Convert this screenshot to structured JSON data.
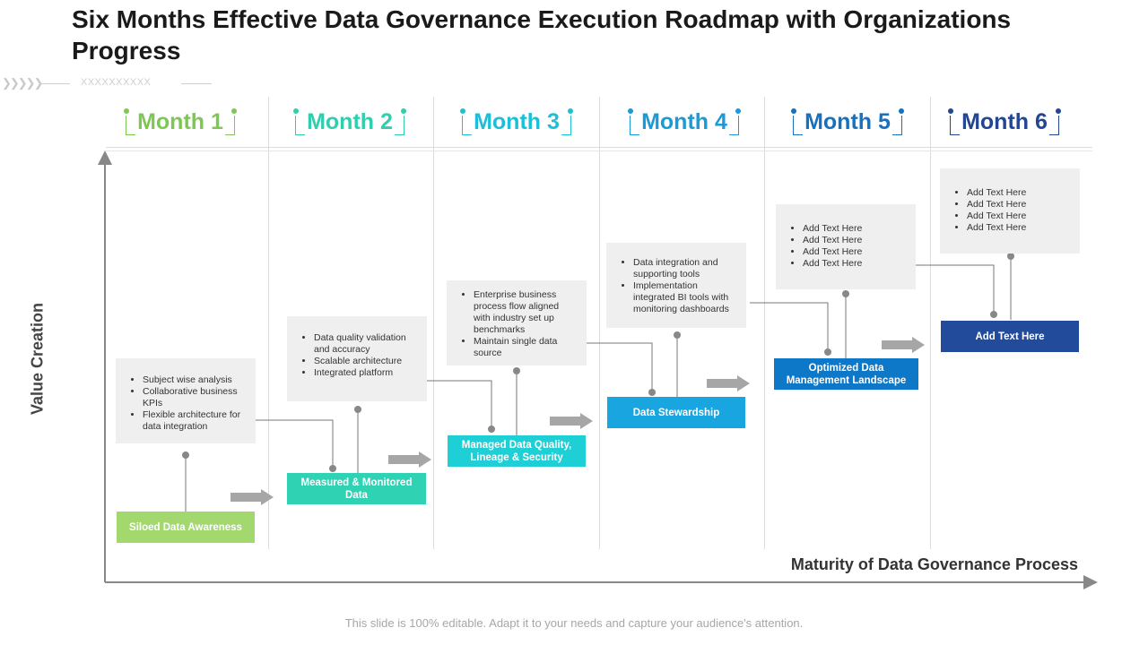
{
  "title": "Six Months Effective Data Governance Execution Roadmap with Organizations Progress",
  "subtitle_placeholder": "XXXXXXXXXX",
  "axes": {
    "y_label": "Value Creation",
    "x_label": "Maturity  of Data Governance Process"
  },
  "months": [
    {
      "label": "Month 1",
      "color": "#7dc855"
    },
    {
      "label": "Month 2",
      "color": "#2fcfae"
    },
    {
      "label": "Month 3",
      "color": "#1cbfd6"
    },
    {
      "label": "Month 4",
      "color": "#1a9bd8"
    },
    {
      "label": "Month 5",
      "color": "#1672c0"
    },
    {
      "label": "Month 6",
      "color": "#234592"
    }
  ],
  "stages": [
    {
      "label": "Siloed Data Awareness",
      "color": "#a2d86d",
      "points": [
        "Subject wise analysis",
        "Collaborative business KPIs",
        "Flexible architecture for data integration"
      ]
    },
    {
      "label": "Measured & Monitored Data",
      "color": "#2fd3b3",
      "points": [
        "Data quality validation and accuracy",
        "Scalable architecture",
        "Integrated platform"
      ]
    },
    {
      "label": "Managed Data Quality, Lineage & Security",
      "color": "#1ecfd6",
      "points": [
        "Enterprise business process flow aligned with industry set up benchmarks",
        "Maintain single data source"
      ]
    },
    {
      "label": "Data Stewardship",
      "color": "#18a5e0",
      "points": [
        "Data integration and supporting tools",
        "Implementation integrated BI tools with monitoring dashboards"
      ]
    },
    {
      "label": "Optimized Data Management Landscape",
      "color": "#0d78c8",
      "points": [
        "Add Text Here",
        "Add Text Here",
        "Add Text Here",
        "Add Text Here"
      ]
    },
    {
      "label": "Add Text Here",
      "color": "#234b9c",
      "points": [
        "Add Text Here",
        "Add Text Here",
        "Add Text Here",
        "Add Text Here"
      ]
    }
  ],
  "footer": "This slide is 100% editable. Adapt it to your needs and capture your audience's attention."
}
